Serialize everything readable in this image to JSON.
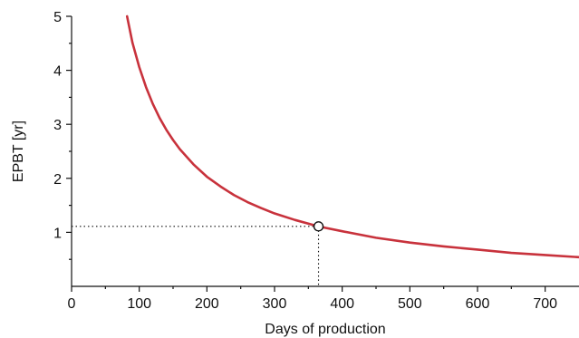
{
  "chart_data": {
    "type": "line",
    "xlabel": "Days of production",
    "ylabel": "EPBT [yr]",
    "xlim": [
      0,
      750
    ],
    "ylim": [
      0,
      5
    ],
    "x_ticks": [
      0,
      100,
      200,
      300,
      400,
      500,
      600,
      700
    ],
    "x_tick_labels": [
      "0",
      "100",
      "200",
      "300",
      "400",
      "500",
      "600",
      "700"
    ],
    "y_ticks": [
      1,
      2,
      3,
      4,
      5
    ],
    "y_tick_labels": [
      "1",
      "2",
      "3",
      "4",
      "5"
    ],
    "grid": false,
    "series": [
      {
        "color": "#c8323c",
        "x": [
          82,
          90,
          100,
          110,
          120,
          130,
          140,
          150,
          160,
          180,
          200,
          220,
          240,
          260,
          280,
          300,
          330,
          365,
          400,
          450,
          500,
          550,
          600,
          650,
          700,
          750
        ],
        "y": [
          5.0,
          4.51,
          4.06,
          3.69,
          3.38,
          3.12,
          2.9,
          2.71,
          2.54,
          2.26,
          2.03,
          1.85,
          1.69,
          1.56,
          1.45,
          1.35,
          1.23,
          1.11,
          1.02,
          0.9,
          0.81,
          0.74,
          0.68,
          0.62,
          0.58,
          0.54
        ]
      }
    ],
    "highlight_point": {
      "x": 365,
      "y": 1.11
    },
    "reference_lines": "dotted lines from the marked point to both axes"
  }
}
